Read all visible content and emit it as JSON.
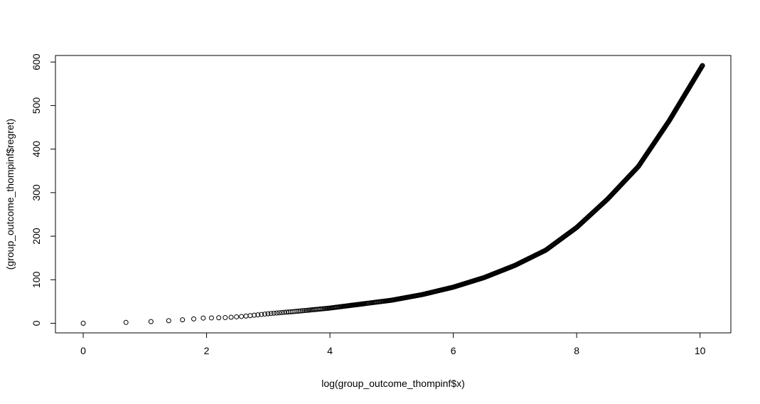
{
  "chart_data": {
    "type": "scatter",
    "xlabel": "log(group_outcome_thompinf$x)",
    "ylabel": "(group_outcome_thompinf$regret)",
    "xlim": [
      -0.45,
      10.5
    ],
    "ylim": [
      -22,
      615
    ],
    "xticks": [
      0,
      2,
      4,
      6,
      8,
      10
    ],
    "xtick_labels": [
      "0",
      "2",
      "4",
      "6",
      "8",
      "10"
    ],
    "yticks": [
      0,
      100,
      200,
      300,
      400,
      500,
      600
    ],
    "ytick_labels": [
      "0",
      "100",
      "200",
      "300",
      "400",
      "500",
      "600"
    ],
    "grid": false,
    "marker": "open-circle",
    "point_color": "#000000",
    "x_range_of_points": [
      0,
      10.04
    ],
    "curve_knots": [
      {
        "x": 0,
        "y": 0
      },
      {
        "x": 0.69,
        "y": 2
      },
      {
        "x": 1.1,
        "y": 4
      },
      {
        "x": 1.39,
        "y": 6
      },
      {
        "x": 1.61,
        "y": 8
      },
      {
        "x": 1.79,
        "y": 10
      },
      {
        "x": 1.95,
        "y": 12
      },
      {
        "x": 2.3,
        "y": 13
      },
      {
        "x": 2.6,
        "y": 16
      },
      {
        "x": 3.0,
        "y": 22
      },
      {
        "x": 3.5,
        "y": 28
      },
      {
        "x": 4.0,
        "y": 35
      },
      {
        "x": 4.5,
        "y": 44
      },
      {
        "x": 5.0,
        "y": 53
      },
      {
        "x": 5.5,
        "y": 66
      },
      {
        "x": 6.0,
        "y": 83
      },
      {
        "x": 6.5,
        "y": 105
      },
      {
        "x": 7.0,
        "y": 133
      },
      {
        "x": 7.5,
        "y": 168
      },
      {
        "x": 8.0,
        "y": 220
      },
      {
        "x": 8.5,
        "y": 285
      },
      {
        "x": 9.0,
        "y": 360
      },
      {
        "x": 9.5,
        "y": 465
      },
      {
        "x": 10.04,
        "y": 592
      }
    ]
  }
}
